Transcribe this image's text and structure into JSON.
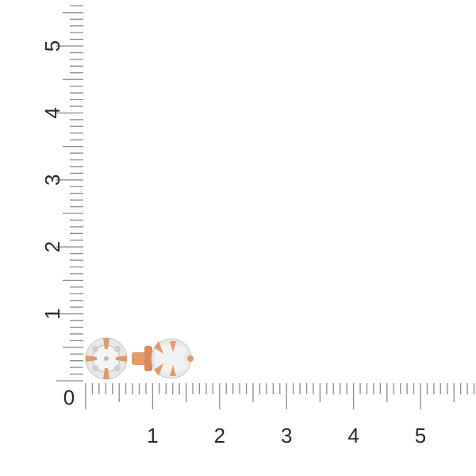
{
  "ruler": {
    "origin_label": "0",
    "x_labels": [
      "1",
      "2",
      "3",
      "4",
      "5"
    ],
    "y_labels": [
      "1",
      "2",
      "3",
      "4",
      "5"
    ],
    "subdivisions_per_unit": 10,
    "tick_color": "#8a8a8a",
    "label_color": "#2a2a2a"
  },
  "product": {
    "metal_color": "#e39a6a",
    "stone_color": "#dcdcdc"
  }
}
